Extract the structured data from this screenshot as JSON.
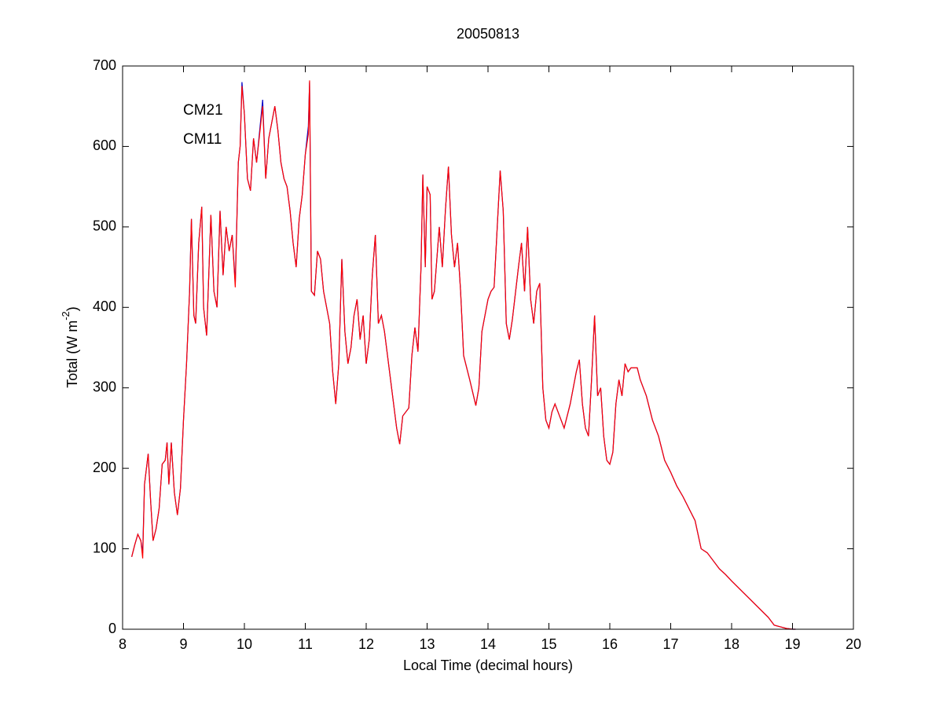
{
  "chart_data": {
    "type": "line",
    "title": "20050813",
    "xlabel": "Local Time (decimal hours)",
    "ylabel": {
      "text": "Total (W m",
      "superscript": "-2",
      "suffix": ")"
    },
    "legend": "upper left",
    "xlim": [
      8,
      20
    ],
    "xticks": [
      8,
      9,
      10,
      11,
      12,
      13,
      14,
      15,
      16,
      17,
      18,
      19,
      20
    ],
    "ylim": [
      0,
      700
    ],
    "yticks": [
      0,
      100,
      200,
      300,
      400,
      500,
      600,
      700
    ],
    "x": [
      8.15,
      8.2,
      8.25,
      8.3,
      8.33,
      8.36,
      8.42,
      8.46,
      8.5,
      8.55,
      8.6,
      8.65,
      8.7,
      8.73,
      8.76,
      8.8,
      8.85,
      8.9,
      8.95,
      9.0,
      9.05,
      9.1,
      9.13,
      9.17,
      9.2,
      9.25,
      9.3,
      9.33,
      9.38,
      9.45,
      9.5,
      9.55,
      9.6,
      9.65,
      9.7,
      9.75,
      9.8,
      9.85,
      9.9,
      9.93,
      9.96,
      10.0,
      10.05,
      10.1,
      10.15,
      10.2,
      10.3,
      10.35,
      10.4,
      10.5,
      10.55,
      10.6,
      10.65,
      10.7,
      10.75,
      10.8,
      10.85,
      10.9,
      10.95,
      11.0,
      11.05,
      11.07,
      11.1,
      11.15,
      11.2,
      11.25,
      11.3,
      11.4,
      11.45,
      11.5,
      11.55,
      11.6,
      11.65,
      11.7,
      11.75,
      11.8,
      11.85,
      11.9,
      11.95,
      12.0,
      12.05,
      12.1,
      12.15,
      12.2,
      12.25,
      12.3,
      12.4,
      12.5,
      12.55,
      12.6,
      12.7,
      12.75,
      12.8,
      12.85,
      12.9,
      12.93,
      12.97,
      13.0,
      13.05,
      13.08,
      13.12,
      13.2,
      13.25,
      13.3,
      13.35,
      13.4,
      13.45,
      13.5,
      13.55,
      13.6,
      13.7,
      13.8,
      13.85,
      13.9,
      14.0,
      14.05,
      14.1,
      14.2,
      14.25,
      14.3,
      14.35,
      14.4,
      14.5,
      14.55,
      14.6,
      14.65,
      14.7,
      14.75,
      14.8,
      14.85,
      14.9,
      14.95,
      15.0,
      15.05,
      15.1,
      15.15,
      15.2,
      15.25,
      15.35,
      15.45,
      15.5,
      15.55,
      15.6,
      15.65,
      15.7,
      15.75,
      15.8,
      15.85,
      15.9,
      15.95,
      16.0,
      16.05,
      16.1,
      16.15,
      16.2,
      16.25,
      16.3,
      16.35,
      16.45,
      16.5,
      16.6,
      16.7,
      16.8,
      16.9,
      17.0,
      17.1,
      17.2,
      17.3,
      17.4,
      17.5,
      17.6,
      17.7,
      17.8,
      17.9,
      18.0,
      18.2,
      18.4,
      18.6,
      18.7,
      18.8,
      18.9,
      19.0,
      19.05
    ],
    "series": [
      {
        "name": "CM21",
        "color": "#0000c8",
        "values": [
          90,
          105,
          118,
          110,
          95,
          180,
          218,
          160,
          110,
          125,
          150,
          205,
          210,
          232,
          180,
          232,
          170,
          142,
          175,
          260,
          330,
          420,
          510,
          390,
          380,
          480,
          525,
          400,
          365,
          515,
          420,
          400,
          520,
          440,
          500,
          470,
          490,
          430,
          580,
          600,
          680,
          640,
          560,
          545,
          610,
          580,
          658,
          560,
          610,
          650,
          620,
          580,
          560,
          550,
          520,
          480,
          450,
          510,
          540,
          590,
          625,
          680,
          420,
          415,
          470,
          460,
          420,
          380,
          320,
          280,
          330,
          460,
          370,
          330,
          350,
          390,
          410,
          360,
          390,
          330,
          360,
          440,
          490,
          380,
          390,
          370,
          310,
          250,
          230,
          265,
          275,
          340,
          375,
          345,
          450,
          565,
          450,
          550,
          540,
          410,
          420,
          500,
          450,
          520,
          575,
          490,
          450,
          480,
          420,
          340,
          310,
          278,
          300,
          370,
          410,
          420,
          425,
          570,
          520,
          380,
          360,
          385,
          450,
          480,
          420,
          500,
          410,
          380,
          420,
          430,
          300,
          260,
          250,
          270,
          280,
          270,
          260,
          250,
          280,
          320,
          335,
          280,
          250,
          240,
          310,
          390,
          290,
          300,
          240,
          210,
          205,
          220,
          280,
          310,
          290,
          330,
          320,
          325,
          325,
          310,
          290,
          260,
          240,
          210,
          195,
          178,
          165,
          150,
          135,
          100,
          95,
          85,
          75,
          68,
          60,
          45,
          30,
          15,
          5,
          3,
          1,
          0,
          0
        ]
      },
      {
        "name": "CM11",
        "color": "#ff0000",
        "values": [
          90,
          105,
          118,
          110,
          88,
          180,
          218,
          160,
          110,
          125,
          150,
          205,
          210,
          232,
          180,
          232,
          170,
          142,
          175,
          260,
          330,
          420,
          510,
          390,
          380,
          480,
          525,
          400,
          365,
          515,
          420,
          400,
          520,
          440,
          500,
          470,
          490,
          425,
          580,
          600,
          675,
          640,
          560,
          545,
          610,
          580,
          650,
          560,
          610,
          650,
          620,
          580,
          560,
          550,
          520,
          480,
          450,
          510,
          540,
          590,
          615,
          682,
          420,
          415,
          470,
          460,
          420,
          380,
          320,
          280,
          330,
          460,
          370,
          330,
          350,
          390,
          410,
          360,
          390,
          330,
          360,
          440,
          490,
          380,
          390,
          370,
          310,
          250,
          230,
          265,
          275,
          340,
          375,
          345,
          450,
          565,
          450,
          550,
          540,
          410,
          420,
          500,
          450,
          520,
          575,
          490,
          450,
          480,
          420,
          340,
          310,
          278,
          300,
          370,
          410,
          420,
          425,
          570,
          520,
          380,
          360,
          385,
          450,
          480,
          420,
          500,
          410,
          380,
          420,
          430,
          300,
          260,
          250,
          270,
          280,
          270,
          260,
          250,
          280,
          320,
          335,
          280,
          250,
          240,
          310,
          390,
          290,
          300,
          240,
          210,
          205,
          220,
          280,
          310,
          290,
          330,
          320,
          325,
          325,
          310,
          290,
          260,
          240,
          210,
          195,
          178,
          165,
          150,
          135,
          100,
          95,
          85,
          75,
          68,
          60,
          45,
          30,
          15,
          5,
          3,
          1,
          0,
          0
        ]
      }
    ]
  }
}
